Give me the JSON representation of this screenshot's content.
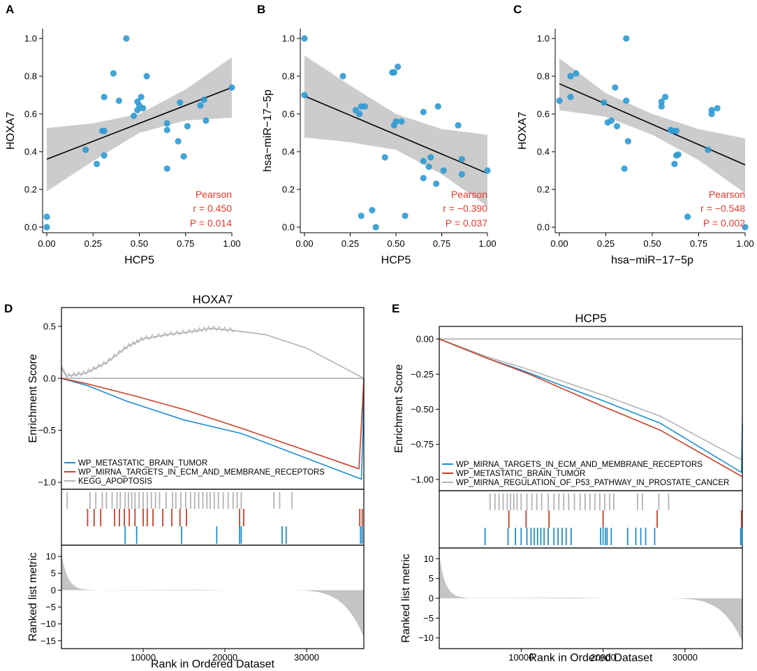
{
  "colors": {
    "point": "#2f9ad3",
    "ci": "#cccccc",
    "fit": "#000000",
    "stat": "#e8392c",
    "blue": "#1f8fd1",
    "red": "#c8412c",
    "grey": "#b3b3b3",
    "metric_fill": "#c4c4c4"
  },
  "chart_data": [
    {
      "id": "A",
      "type": "scatter",
      "letter": "A",
      "xlabel": "HCP5",
      "ylabel": "HOXA7",
      "xlim": [
        0,
        1
      ],
      "ylim": [
        0,
        1
      ],
      "xticks": [
        "0.00",
        "0.25",
        "0.50",
        "0.75",
        "1.00"
      ],
      "yticks": [
        "0.0",
        "0.2",
        "0.4",
        "0.6",
        "0.8",
        "1.0"
      ],
      "stat_label": "Pearson",
      "r_label": "r = 0.450",
      "p_label": "P = 0.014",
      "fit": {
        "intercept": 0.36,
        "slope": 0.38
      },
      "ci_lower": [
        [
          0,
          0.19
        ],
        [
          0.25,
          0.35
        ],
        [
          0.5,
          0.5
        ],
        [
          0.75,
          0.565
        ],
        [
          1,
          0.58
        ]
      ],
      "ci_upper": [
        [
          0,
          0.525
        ],
        [
          0.25,
          0.55
        ],
        [
          0.5,
          0.6
        ],
        [
          0.75,
          0.73
        ],
        [
          1,
          0.9
        ]
      ],
      "points": [
        [
          0.0,
          0.055
        ],
        [
          0.0,
          0.0
        ],
        [
          0.21,
          0.41
        ],
        [
          0.27,
          0.335
        ],
        [
          0.3,
          0.51
        ],
        [
          0.31,
          0.38
        ],
        [
          0.31,
          0.69
        ],
        [
          0.36,
          0.815
        ],
        [
          0.39,
          0.67
        ],
        [
          0.43,
          1.0
        ],
        [
          0.47,
          0.59
        ],
        [
          0.49,
          0.665
        ],
        [
          0.51,
          0.69
        ],
        [
          0.49,
          0.62
        ],
        [
          0.5,
          0.645
        ],
        [
          0.52,
          0.63
        ],
        [
          0.54,
          0.8
        ],
        [
          0.65,
          0.31
        ],
        [
          0.65,
          0.55
        ],
        [
          0.65,
          0.515
        ],
        [
          0.71,
          0.455
        ],
        [
          0.72,
          0.66
        ],
        [
          0.74,
          0.375
        ],
        [
          0.76,
          0.535
        ],
        [
          0.83,
          0.645
        ],
        [
          0.85,
          0.675
        ],
        [
          0.86,
          0.565
        ],
        [
          0.31,
          0.51
        ],
        [
          1.0,
          0.74
        ]
      ]
    },
    {
      "id": "B",
      "type": "scatter",
      "letter": "B",
      "xlabel": "HCP5",
      "ylabel": "hsa−miR−17−5p",
      "xlim": [
        0,
        1
      ],
      "ylim": [
        0,
        1
      ],
      "xticks": [
        "0.00",
        "0.25",
        "0.50",
        "0.75",
        "1.00"
      ],
      "yticks": [
        "0.0",
        "0.2",
        "0.4",
        "0.6",
        "0.8",
        "1.0"
      ],
      "stat_label": "Pearson",
      "r_label": "r = −0.390",
      "p_label": "P = 0.037",
      "fit": {
        "intercept": 0.695,
        "slope": -0.41
      },
      "ci_lower": [
        [
          0,
          0.475
        ],
        [
          0.25,
          0.45
        ],
        [
          0.5,
          0.41
        ],
        [
          0.75,
          0.28
        ],
        [
          1,
          0.11
        ]
      ],
      "ci_upper": [
        [
          0,
          0.91
        ],
        [
          0.25,
          0.75
        ],
        [
          0.5,
          0.6
        ],
        [
          0.75,
          0.52
        ],
        [
          1,
          0.49
        ]
      ],
      "points": [
        [
          0.0,
          1.0
        ],
        [
          0.0,
          0.7
        ],
        [
          0.21,
          0.8
        ],
        [
          0.28,
          0.62
        ],
        [
          0.3,
          0.6
        ],
        [
          0.31,
          0.64
        ],
        [
          0.33,
          0.64
        ],
        [
          0.31,
          0.06
        ],
        [
          0.37,
          0.09
        ],
        [
          0.39,
          0.0
        ],
        [
          0.44,
          0.37
        ],
        [
          0.48,
          0.82
        ],
        [
          0.49,
          0.82
        ],
        [
          0.49,
          0.54
        ],
        [
          0.5,
          0.56
        ],
        [
          0.51,
          0.85
        ],
        [
          0.53,
          0.56
        ],
        [
          0.55,
          0.06
        ],
        [
          0.65,
          0.26
        ],
        [
          0.65,
          0.35
        ],
        [
          0.65,
          0.61
        ],
        [
          0.68,
          0.32
        ],
        [
          0.69,
          0.37
        ],
        [
          0.72,
          0.23
        ],
        [
          0.73,
          0.64
        ],
        [
          0.76,
          0.3
        ],
        [
          0.84,
          0.54
        ],
        [
          0.86,
          0.36
        ],
        [
          0.86,
          0.28
        ],
        [
          1.0,
          0.3
        ]
      ]
    },
    {
      "id": "C",
      "type": "scatter",
      "letter": "C",
      "xlabel": "hsa−miR−17−5p",
      "ylabel": "HOXA7",
      "xlim": [
        0,
        1
      ],
      "ylim": [
        0,
        1
      ],
      "xticks": [
        "0.00",
        "0.25",
        "0.50",
        "0.75",
        "1.00"
      ],
      "yticks": [
        "0.0",
        "0.2",
        "0.4",
        "0.6",
        "0.8",
        "1.0"
      ],
      "stat_label": "Pearson",
      "r_label": "r = −0.548",
      "p_label": "P = 0.002",
      "fit": {
        "intercept": 0.76,
        "slope": -0.43
      },
      "ci_lower": [
        [
          0,
          0.62
        ],
        [
          0.25,
          0.585
        ],
        [
          0.5,
          0.49
        ],
        [
          0.75,
          0.355
        ],
        [
          1,
          0.18
        ]
      ],
      "ci_upper": [
        [
          0,
          0.895
        ],
        [
          0.25,
          0.71
        ],
        [
          0.5,
          0.6
        ],
        [
          0.75,
          0.52
        ],
        [
          1,
          0.47
        ]
      ],
      "points": [
        [
          0.0,
          0.67
        ],
        [
          0.06,
          0.8
        ],
        [
          0.06,
          0.69
        ],
        [
          0.09,
          0.815
        ],
        [
          0.24,
          0.66
        ],
        [
          0.26,
          0.555
        ],
        [
          0.28,
          0.565
        ],
        [
          0.3,
          0.74
        ],
        [
          0.31,
          0.535
        ],
        [
          0.35,
          0.31
        ],
        [
          0.36,
          0.67
        ],
        [
          0.37,
          0.455
        ],
        [
          0.36,
          1.0
        ],
        [
          0.55,
          0.665
        ],
        [
          0.55,
          0.64
        ],
        [
          0.57,
          0.69
        ],
        [
          0.6,
          0.515
        ],
        [
          0.61,
          0.51
        ],
        [
          0.63,
          0.51
        ],
        [
          0.62,
          0.335
        ],
        [
          0.63,
          0.38
        ],
        [
          0.64,
          0.385
        ],
        [
          0.69,
          0.055
        ],
        [
          0.8,
          0.41
        ],
        [
          0.82,
          0.6
        ],
        [
          0.82,
          0.62
        ],
        [
          0.85,
          0.63
        ],
        [
          1.0,
          0.0
        ]
      ]
    },
    {
      "id": "D",
      "type": "line",
      "letter": "D",
      "title": "HOXA7",
      "ylabel_top": "Enrichment Score",
      "ylabel_bottom": "Ranked list metric",
      "xlabel": "Rank in Ordered Dataset",
      "xlim": [
        0,
        37000
      ],
      "es_ylim": [
        -1.0,
        0.6
      ],
      "es_yticks": [
        {
          "v": 0.5,
          "label": "0.5"
        },
        {
          "v": 0.0,
          "label": "0.0"
        },
        {
          "v": -0.5,
          "label": "−0.5"
        },
        {
          "v": -1.0,
          "label": "−1.0"
        }
      ],
      "metric_ylim": [
        -16.5,
        12.5
      ],
      "metric_yticks": [
        {
          "v": 10,
          "label": "10"
        },
        {
          "v": 5,
          "label": "5"
        },
        {
          "v": 0,
          "label": "0"
        },
        {
          "v": -5,
          "label": "−5"
        },
        {
          "v": -10,
          "label": "−10"
        },
        {
          "v": -15,
          "label": "−15"
        }
      ],
      "xticks": [
        {
          "v": 10000,
          "label": "10000"
        },
        {
          "v": 20000,
          "label": "20000"
        },
        {
          "v": 30000,
          "label": "30000"
        }
      ],
      "metric_pos_peak": 11,
      "metric_neg_peak": -14,
      "legend": [
        "WP_METASTATIC_BRAIN_TUMOR",
        "WP_MIRNA_TARGETS_IN_ECM_AND_MEMBRANE_RECEPTORS",
        "KEGG_APOPTOSIS"
      ],
      "series": [
        {
          "name": "WP_METASTATIC_BRAIN_TUMOR",
          "color": "blue",
          "x": [
            0,
            3200,
            8000,
            15000,
            22000,
            36700,
            36900,
            37000
          ],
          "y": [
            0,
            -0.07,
            -0.22,
            -0.4,
            -0.53,
            -0.97,
            -0.5,
            0
          ]
        },
        {
          "name": "WP_MIRNA_TARGETS_IN_ECM_AND_MEMBRANE_RECEPTORS",
          "color": "red",
          "x": [
            0,
            3000,
            9000,
            15000,
            22000,
            36400,
            36800,
            37000
          ],
          "y": [
            0,
            -0.05,
            -0.17,
            -0.3,
            -0.48,
            -0.87,
            -0.3,
            0
          ]
        },
        {
          "name": "KEGG_APOPTOSIS",
          "color": "grey",
          "x": [
            0,
            600,
            3000,
            5500,
            8000,
            10000,
            13000,
            16000,
            18300,
            21000,
            25000,
            30000,
            37000
          ],
          "y": [
            0.1,
            0.02,
            0.05,
            0.15,
            0.3,
            0.38,
            0.42,
            0.45,
            0.48,
            0.46,
            0.42,
            0.29,
            0
          ]
        }
      ],
      "hits": {
        "grey": [
          700,
          3500,
          4200,
          5000,
          5500,
          6200,
          6800,
          7200,
          7800,
          8200,
          8600,
          9000,
          9500,
          10000,
          10500,
          11000,
          11500,
          12000,
          12800,
          13600,
          14000,
          14600,
          15200,
          15800,
          16300,
          16800,
          17300,
          17800,
          18200,
          18700,
          19200,
          19800,
          20400,
          21000,
          21500,
          22000,
          26000,
          26700,
          28200
        ],
        "red": [
          3200,
          4000,
          4800,
          6500,
          7100,
          7700,
          8300,
          9000,
          10000,
          10500,
          11200,
          12400,
          13500,
          14500,
          15300,
          21800,
          22300,
          36500,
          36800
        ],
        "blue": [
          7800,
          9200,
          14700,
          19000,
          21800,
          22000,
          27000,
          27500,
          36600,
          36800
        ]
      }
    },
    {
      "id": "E",
      "type": "line",
      "letter": "E",
      "title": "HCP5",
      "ylabel_top": "Enrichment Score",
      "ylabel_bottom": "Ranked list metric",
      "xlabel": "Rank in Ordered Dataset",
      "xlim": [
        0,
        37000
      ],
      "es_ylim": [
        -1.03,
        0.03
      ],
      "es_yticks": [
        {
          "v": 0.0,
          "label": "0.00"
        },
        {
          "v": -0.25,
          "label": "−0.25"
        },
        {
          "v": -0.5,
          "label": "−0.50"
        },
        {
          "v": -0.75,
          "label": "−0.75"
        },
        {
          "v": -1.0,
          "label": "−1.00"
        }
      ],
      "metric_ylim": [
        -12,
        12
      ],
      "metric_yticks": [
        {
          "v": 10,
          "label": "10"
        },
        {
          "v": 5,
          "label": "5"
        },
        {
          "v": 0,
          "label": "0"
        },
        {
          "v": -5,
          "label": "−5"
        },
        {
          "v": -10,
          "label": "−10"
        }
      ],
      "xticks": [
        {
          "v": 10000,
          "label": "10000"
        },
        {
          "v": 20000,
          "label": "20000"
        },
        {
          "v": 30000,
          "label": "30000"
        }
      ],
      "metric_pos_peak": 11,
      "metric_neg_peak": -11,
      "legend": [
        "WP_MIRNA_TARGETS_IN_ECM_AND_MEMBRANE_RECEPTORS",
        "WP_METASTATIC_BRAIN_TUMOR",
        "WP_MIRNA_REGULATION_OF_P53_PATHWAY_IN_PROSTATE_CANCER"
      ],
      "series": [
        {
          "name": "WP_MIRNA_TARGETS_IN_ECM_AND_MEMBRANE_RECEPTORS",
          "color": "blue",
          "x": [
            0,
            6000,
            10000,
            14000,
            20000,
            27000,
            36900,
            37000
          ],
          "y": [
            0,
            -0.14,
            -0.22,
            -0.31,
            -0.44,
            -0.6,
            -0.95,
            -0.6
          ]
        },
        {
          "name": "WP_METASTATIC_BRAIN_TUMOR",
          "color": "red",
          "x": [
            0,
            6000,
            11000,
            20000,
            27000,
            37000
          ],
          "y": [
            0,
            -0.14,
            -0.25,
            -0.48,
            -0.65,
            -0.98
          ]
        },
        {
          "name": "WP_MIRNA_REGULATION_OF_P53_PATHWAY_IN_PROSTATE_CANCER",
          "color": "grey",
          "x": [
            0,
            6000,
            10000,
            14000,
            20000,
            27000,
            36900,
            37000
          ],
          "y": [
            0,
            -0.13,
            -0.2,
            -0.28,
            -0.4,
            -0.55,
            -0.86,
            -0.7
          ]
        }
      ],
      "hits": {
        "grey": [
          6200,
          6800,
          7300,
          7800,
          8300,
          8700,
          9100,
          9500,
          10000,
          10700,
          11300,
          11900,
          12500,
          13300,
          14000,
          14600,
          15200,
          15800,
          16500,
          17200,
          17800,
          18400,
          19000,
          19600,
          20200,
          20800,
          21300,
          24200,
          24800,
          26800,
          28000
        ],
        "red": [
          8500,
          10600,
          13400,
          20000,
          26600,
          36900
        ],
        "blue": [
          5600,
          8400,
          9300,
          10000,
          10700,
          11200,
          11600,
          12000,
          12400,
          12800,
          13300,
          14000,
          14500,
          15000,
          15500,
          16100,
          19700,
          20000,
          20300,
          20500,
          21000,
          23000,
          24000,
          24600,
          25200,
          26300,
          36800,
          36950
        ]
      }
    }
  ]
}
